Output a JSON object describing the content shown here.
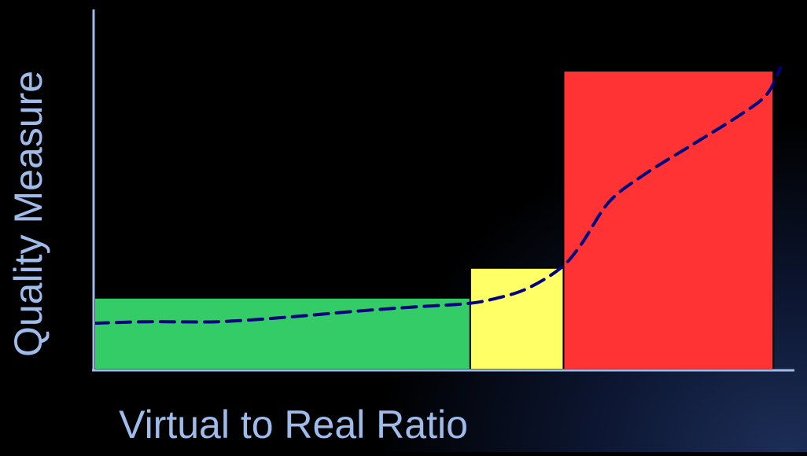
{
  "chart_data": {
    "type": "bar",
    "xlabel": "Virtual to Real Ratio",
    "ylabel": "Quality Measure",
    "xlim": [
      0,
      100
    ],
    "ylim": [
      0,
      100
    ],
    "bars": [
      {
        "x0": 0,
        "x1": 54.8,
        "value": 24,
        "color": "#33cc66"
      },
      {
        "x0": 54.8,
        "x1": 68.4,
        "value": 34,
        "color": "#ffff66"
      },
      {
        "x0": 68.4,
        "x1": 99.0,
        "value": 100,
        "color": "#ff3333"
      }
    ],
    "trend_line": {
      "style": "dashed",
      "color": "#000080",
      "x": [
        0,
        8,
        18,
        28,
        38,
        47,
        54,
        58,
        63,
        68,
        71,
        75,
        80,
        87,
        94,
        98,
        100
      ],
      "y": [
        15.5,
        16,
        16,
        17.5,
        19.5,
        21,
        22,
        23.5,
        27,
        34,
        42,
        56,
        65,
        75,
        85,
        92,
        101
      ]
    },
    "grid": false,
    "legend": "none"
  }
}
